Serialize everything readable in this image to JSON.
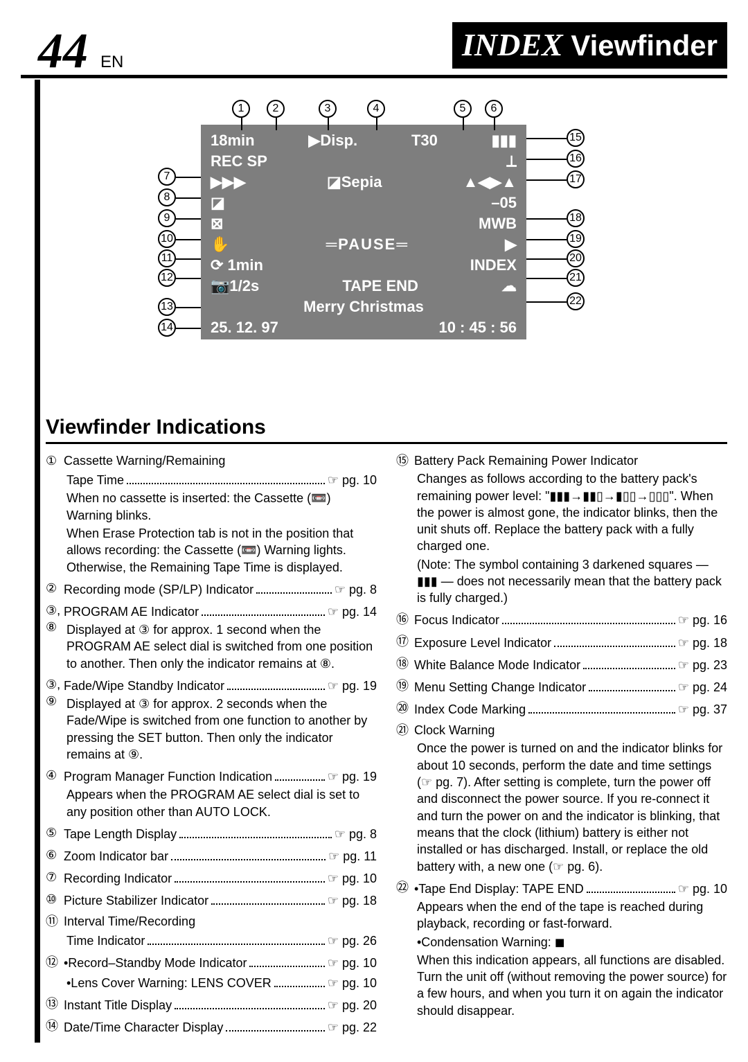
{
  "page": {
    "number": "44",
    "lang": "EN",
    "title_em": "INDEX",
    "title_rest": "Viewfinder"
  },
  "viewfinder": {
    "bg": "#7e7e7e",
    "text_color": "#ffffff",
    "tapeTime": "18min",
    "dispLabel": "Disp.",
    "tapeLength": "T30",
    "recMode": "REC SP",
    "effect": "Sepia",
    "exposure": "–05",
    "wb": "MWB",
    "mode": "PAUSE",
    "interval1": "1min",
    "index": "INDEX",
    "shutter": "1/2s",
    "tapeEnd": "TAPE END",
    "title": "Merry Christmas",
    "date": "25. 12. 97",
    "time": "10 : 45 : 56"
  },
  "callouts_top": [
    "1",
    "2",
    "3",
    "4",
    "5",
    "6"
  ],
  "callouts_left": [
    "7",
    "8",
    "9",
    "10",
    "11",
    "12",
    "13",
    "14"
  ],
  "callouts_right": [
    "15",
    "16",
    "17",
    "18",
    "19",
    "20",
    "21",
    "22"
  ],
  "section_title": "Viewfinder Indications",
  "col1": [
    {
      "n": "①",
      "lbl": "Cassette Warning/Remaining",
      "ref": "",
      "sub": [
        {
          "lbl": "Tape Time",
          "ref": "☞ pg. 10"
        },
        {
          "plain": "When no cassette is inserted: the Cassette (📼) Warning blinks."
        },
        {
          "plain": "When Erase Protection tab is not in the position that allows recording: the Cassette (📼) Warning lights. Otherwise, the Remaining Tape Time is displayed."
        }
      ]
    },
    {
      "n": "②",
      "lbl": "Recording mode (SP/LP) Indicator",
      "ref": "☞ pg. 8"
    },
    {
      "n": "③, ⑧",
      "lbl": "PROGRAM AE Indicator",
      "ref": "☞ pg. 14",
      "sub": [
        {
          "plain": "Displayed at ③ for approx. 1 second when the PROGRAM AE select dial is switched from one position to another. Then only the indicator remains at ⑧."
        }
      ]
    },
    {
      "n": "③, ⑨",
      "lbl": "Fade/Wipe Standby Indicator",
      "ref": "☞ pg. 19",
      "sub": [
        {
          "plain": "Displayed at ③ for approx. 2 seconds when the Fade/Wipe is switched from one function to another by pressing the SET button. Then only the indicator remains at ⑨."
        }
      ]
    },
    {
      "n": "④",
      "lbl": "Program Manager Function Indication",
      "ref": "☞ pg. 19",
      "sub": [
        {
          "plain": "Appears when the PROGRAM AE select dial is set to any position other than AUTO LOCK."
        }
      ]
    },
    {
      "n": "⑤",
      "lbl": "Tape Length Display",
      "ref": "☞ pg. 8"
    },
    {
      "n": "⑥",
      "lbl": "Zoom Indicator bar",
      "ref": "☞ pg. 11"
    },
    {
      "n": "⑦",
      "lbl": "Recording Indicator",
      "ref": "☞ pg. 10"
    },
    {
      "n": "⑩",
      "lbl": "Picture Stabilizer Indicator",
      "ref": "☞ pg. 18"
    },
    {
      "n": "⑪",
      "lbl": "Interval Time/Recording",
      "ref": "",
      "sub": [
        {
          "lbl": "Time Indicator",
          "ref": "☞ pg. 26"
        }
      ]
    },
    {
      "n": "⑫",
      "lbl": "•Record–Standby Mode Indicator",
      "ref": "☞ pg. 10",
      "sub": [
        {
          "lbl": "•Lens Cover Warning: LENS COVER",
          "ref": "☞ pg. 10"
        }
      ]
    },
    {
      "n": "⑬",
      "lbl": "Instant Title Display",
      "ref": "☞ pg. 20"
    },
    {
      "n": "⑭",
      "lbl": "Date/Time Character Display",
      "ref": "☞ pg. 22"
    }
  ],
  "col2": [
    {
      "n": "⑮",
      "lbl": "Battery Pack Remaining Power Indicator",
      "ref": "",
      "sub": [
        {
          "plain": "Changes as follows according to the battery pack's remaining power level: \"▮▮▮→▮▮▯→▮▯▯→▯▯▯\". When the power is almost gone, the indicator blinks, then the unit shuts off. Replace the battery pack with a fully charged one."
        },
        {
          "plain": "(Note: The symbol containing 3 darkened squares — ▮▮▮ — does not necessarily mean that the battery pack is fully charged.)"
        }
      ]
    },
    {
      "n": "⑯",
      "lbl": "Focus Indicator",
      "ref": "☞ pg. 16"
    },
    {
      "n": "⑰",
      "lbl": "Exposure Level Indicator",
      "ref": "☞ pg. 18"
    },
    {
      "n": "⑱",
      "lbl": "White Balance Mode Indicator",
      "ref": "☞ pg. 23"
    },
    {
      "n": "⑲",
      "lbl": "Menu Setting Change Indicator",
      "ref": "☞ pg. 24"
    },
    {
      "n": "⑳",
      "lbl": "Index Code Marking",
      "ref": "☞ pg. 37"
    },
    {
      "n": "㉑",
      "lbl": "Clock Warning",
      "ref": "",
      "sub": [
        {
          "plain": "Once the power is turned on and the indicator blinks for about 10 seconds, perform the date and time settings (☞ pg. 7). After setting is complete, turn the power off and disconnect the power source. If you re-connect it and turn the power on and the indicator is blinking, that means that the clock (lithium) battery is either not installed or has discharged. Install, or replace the old battery with, a new one (☞ pg. 6)."
        }
      ]
    },
    {
      "n": "㉒",
      "lbl": "•Tape End Display: TAPE END",
      "ref": "☞ pg. 10",
      "sub": [
        {
          "plain": "Appears when the end of the tape is reached during playback, recording or fast-forward."
        },
        {
          "plain": "•Condensation Warning: ◼"
        },
        {
          "plain": "When this indication appears, all functions are disabled. Turn the unit off (without removing the power source) for a few hours, and when you turn it on again the indicator should disappear."
        }
      ]
    }
  ]
}
